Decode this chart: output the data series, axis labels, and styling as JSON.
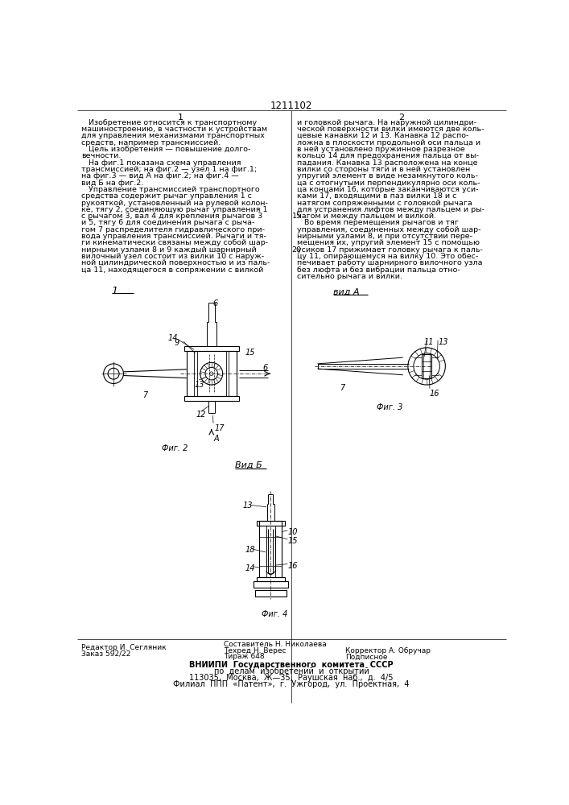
{
  "page_number": "1211102",
  "col1_header": "1",
  "col2_header": "2",
  "col1_text": [
    "   Изобретение относится к транспортному",
    "машиностроению, в частности к устройствам",
    "для управления механизмами транспортных",
    "средств, например трансмиссией.",
    "   Цель изобретения — повышение долго-",
    "вечности.",
    "   На фиг.1 показана схема управления",
    "трансмиссией; на фиг.2 — узел 1 на фиг.1;",
    "на фиг.3 — вид А на фиг.2; на фиг.4 —",
    "вид Б на фиг.2.",
    "   Управление трансмиссией транспортного",
    "средства содержит рычаг управления 1 с",
    "рукояткой, установленный на рулевой колон-",
    "ке, тягу 2, соединяющую рычаг управления 1",
    "с рычагом 3, вал 4 для крепления рычагов 3",
    "и 5, тягу 6 для соединения рычага с рыча-",
    "гом 7 распределителя гидравлического при-",
    "вода управления трансмиссией. Рычаги и тя-",
    "ги кинематически связаны между собой шар-",
    "нирными узлами 8 и 9 каждый шарнирный",
    "вилочный узел состоит из вилки 10 с наруж-",
    "ной цилиндрической поверхностью и из паль-",
    "ца 11, находящегося в сопряжении с вилкой"
  ],
  "col2_text": [
    "и головкой рычага. На наружной цилиндри-",
    "ческой поверхности вилки имеются две коль-",
    "цевые канавки 12 и 13. Канавка 12 распо-",
    "ложна в плоскости продольной оси пальца и",
    "в ней установлено пружинное разрезное",
    "кольцо 14 для предохранения пальца от вы-",
    "падания. Канавка 13 расположена на конце",
    "вилки со стороны тяги и в ней установлен",
    "упругий элемент в виде незамкнутого коль-",
    "ца с отогнутыми перпендикулярно оси коль-",
    "ца концами 16, которые заканчиваются уси-",
    "ками 17, входящими в паз вилки 18 и с",
    "натягом сопряженными с головкой рычага",
    "для устранения лифтов между пальцем и ры-",
    "чагом и между пальцем и вилкой.",
    "   Во время перемещения рычагов и тяг",
    "управления, соединенных между собой шар-",
    "нирными узлами 8, и при отсутствии пере-",
    "мещения их, упругий элемент 15 с помощью",
    "усиков 17 прижимает головку рычага к паль-",
    "цу 11, опирающемуся на вилку 10. Это обес-",
    "печивает работу шарнирного вилочного узла",
    "без люфта и без вибрации пальца отно-",
    "сительно рычага и вилки."
  ],
  "footer_left_1": "Редактор И. Сегляник",
  "footer_left_2": "Заказ 592/22",
  "footer_mid_1": "Составитель Н. Николаева",
  "footer_mid_2": "Техред Н. Верес",
  "footer_mid_3": "Корректор А. Обручар",
  "footer_mid_4": "Тираж 648",
  "footer_mid_5": "Подписное",
  "footer_bot_1": "ВНИИПИ  Государственного  комитета  СССР",
  "footer_bot_2": "по  делам  изобретений  и  открытий",
  "footer_bot_3": "113035,  Москва,  Ж—35,  Раушская  наб.,  д.  4/5",
  "footer_bot_4": "Филиал  ППП  «Патент»,  г.  Ужгород,  ул.  Проектная,  4",
  "fig2_label": "Фиг. 2",
  "fig3_label": "Фиг. 3",
  "fig4_label": "Фиг. 4",
  "vidA_label": "вид А",
  "vidB_label": "Вид Б",
  "bg_color": "#ffffff"
}
